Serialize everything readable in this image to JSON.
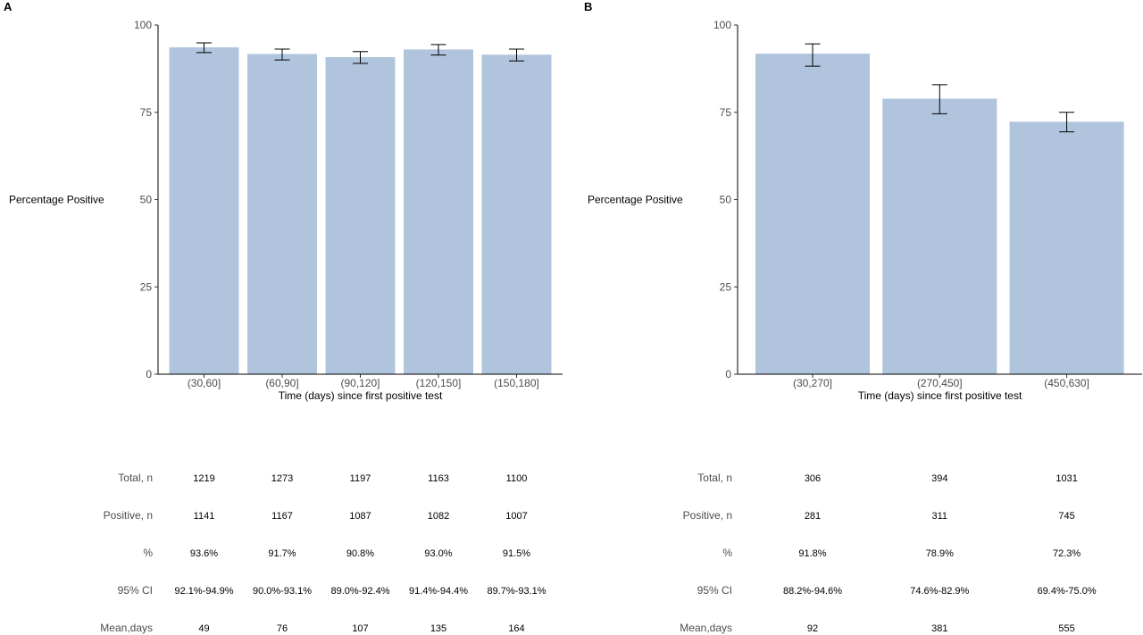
{
  "chart_data": [
    {
      "type": "bar",
      "panel_label": "A",
      "title": "",
      "xlabel": "Time (days) since first positive test",
      "ylabel": "Percentage Positive",
      "ylim": [
        0,
        100
      ],
      "yticks": [
        "0",
        "25",
        "50",
        "75",
        "100"
      ],
      "categories": [
        "(30,60]",
        "(60,90]",
        "(90,120]",
        "(120,150]",
        "(150,180]"
      ],
      "values": [
        93.6,
        91.7,
        90.8,
        93.0,
        91.5
      ],
      "ci_low": [
        92.1,
        90.0,
        89.0,
        91.4,
        89.7
      ],
      "ci_high": [
        94.9,
        93.1,
        92.4,
        94.4,
        93.1
      ],
      "bar_color": "#b0c4de",
      "grid": false,
      "table": {
        "row_labels": [
          "Total, n",
          "Positive, n",
          "%",
          "95% CI",
          "Mean,days"
        ],
        "rows": [
          [
            "1219",
            "1273",
            "1197",
            "1163",
            "1100"
          ],
          [
            "1141",
            "1167",
            "1087",
            "1082",
            "1007"
          ],
          [
            "93.6%",
            "91.7%",
            "90.8%",
            "93.0%",
            "91.5%"
          ],
          [
            "92.1%-94.9%",
            "90.0%-93.1%",
            "89.0%-92.4%",
            "91.4%-94.4%",
            "89.7%-93.1%"
          ],
          [
            "49",
            "76",
            "107",
            "135",
            "164"
          ]
        ]
      }
    },
    {
      "type": "bar",
      "panel_label": "B",
      "title": "",
      "xlabel": "Time (days) since first positive test",
      "ylabel": "Percentage Positive",
      "ylim": [
        0,
        100
      ],
      "yticks": [
        "0",
        "25",
        "50",
        "75",
        "100"
      ],
      "categories": [
        "(30,270]",
        "(270,450]",
        "(450,630]"
      ],
      "values": [
        91.8,
        78.9,
        72.3
      ],
      "ci_low": [
        88.2,
        74.6,
        69.4
      ],
      "ci_high": [
        94.6,
        82.9,
        75.0
      ],
      "bar_color": "#b0c4de",
      "grid": false,
      "table": {
        "row_labels": [
          "Total, n",
          "Positive, n",
          "%",
          "95% CI",
          "Mean,days"
        ],
        "rows": [
          [
            "306",
            "394",
            "1031"
          ],
          [
            "281",
            "311",
            "745"
          ],
          [
            "91.8%",
            "78.9%",
            "72.3%"
          ],
          [
            "88.2%-94.6%",
            "74.6%-82.9%",
            "69.4%-75.0%"
          ],
          [
            "92",
            "381",
            "555"
          ]
        ]
      }
    }
  ]
}
